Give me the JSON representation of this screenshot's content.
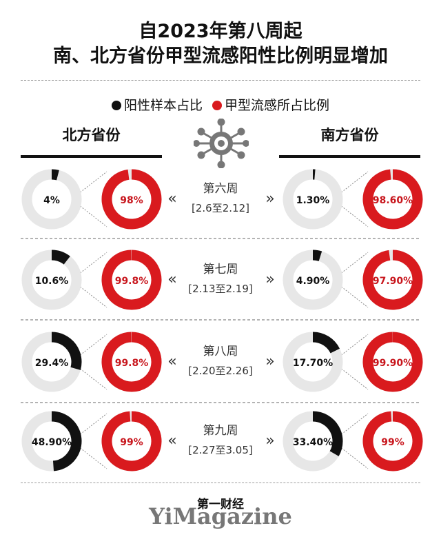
{
  "header": {
    "title_line1": "自2023年第八周起",
    "title_line2": "南、北方省份甲型流感阳性比例明显增加"
  },
  "legend": {
    "items": [
      {
        "label": "阳性样本占比",
        "color": "#111111"
      },
      {
        "label": "甲型流感所占比例",
        "color": "#d91a1e"
      }
    ]
  },
  "sides": {
    "north": "北方省份",
    "south": "南方省份"
  },
  "chart_data": {
    "type": "donut",
    "categories": [
      {
        "week": "第六周",
        "range": "[2.6至2.12]"
      },
      {
        "week": "第七周",
        "range": "[2.13至2.19]"
      },
      {
        "week": "第八周",
        "range": "[2.20至2.26]"
      },
      {
        "week": "第九周",
        "range": "[2.27至3.05]"
      }
    ],
    "series": [
      {
        "name": "北方省份 阳性样本占比",
        "labels": [
          "4%",
          "10.6%",
          "29.4%",
          "48.90%"
        ],
        "values": [
          4,
          10.6,
          29.4,
          48.9
        ]
      },
      {
        "name": "北方省份 甲型流感所占比例",
        "labels": [
          "98%",
          "99.8%",
          "99.8%",
          "99%"
        ],
        "values": [
          98,
          99.8,
          99.8,
          99
        ]
      },
      {
        "name": "南方省份 阳性样本占比",
        "labels": [
          "1.30%",
          "4.90%",
          "17.70%",
          "33.40%"
        ],
        "values": [
          1.3,
          4.9,
          17.7,
          33.4
        ]
      },
      {
        "name": "南方省份 甲型流感所占比例",
        "labels": [
          "98.60%",
          "97.90%",
          "99.90%",
          "99%"
        ],
        "values": [
          98.6,
          97.9,
          99.9,
          99
        ]
      }
    ],
    "arrows": [
      "«",
      "»"
    ]
  },
  "colors": {
    "positive": "#111111",
    "flu_a": "#d91a1e",
    "ring_bg": "#e7e7e7"
  },
  "footer": {
    "brand_cn": "第一财经",
    "brand_en": "YiMagazine"
  }
}
